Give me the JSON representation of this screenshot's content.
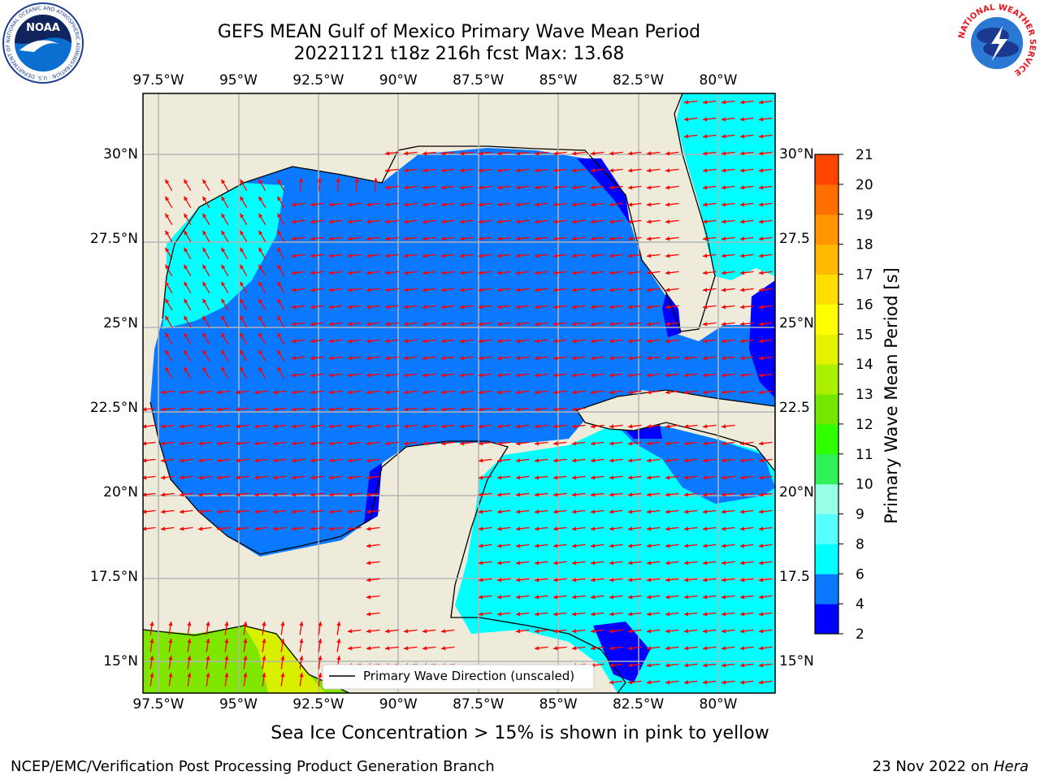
{
  "header": {
    "title_line1": "GEFS MEAN Gulf of Mexico Primary Wave Mean Period",
    "title_line2": "20221121 t18z 216h fcst   Max: 13.68"
  },
  "logos": {
    "left": "NOAA",
    "left_ring": "NATIONAL OCEANIC AND ATMOSPHERIC ADMINISTRATION · U.S. DEPARTMENT OF COMMERCE",
    "right_ring": "NATIONAL WEATHER SERVICE"
  },
  "chart_data": {
    "type": "heatmap",
    "title": "GEFS MEAN Gulf of Mexico Primary Wave Mean Period",
    "subtitle": "20221121 t18z 216h fcst   Max: 13.68",
    "max_value": 13.68,
    "xlim": [
      -98.0,
      -78.0
    ],
    "ylim": [
      14.0,
      32.0
    ],
    "x_ticks": [
      -97.5,
      -95,
      -92.5,
      -90,
      -87.5,
      -85,
      -82.5,
      -80
    ],
    "x_tick_labels": [
      "97.5°W",
      "95°W",
      "92.5°W",
      "90°W",
      "87.5°W",
      "85°W",
      "82.5°W",
      "80°W"
    ],
    "y_ticks": [
      30,
      27.5,
      25,
      22.5,
      20,
      17.5,
      15
    ],
    "y_tick_labels": [
      "30°N",
      "27.5°N",
      "25°N",
      "22.5°N",
      "20°N",
      "17.5°N",
      "15°N"
    ],
    "right_tick_labels": [
      "30°N",
      "27.5",
      "25°N",
      "22.5",
      "20°N",
      "17.5",
      "15°N"
    ],
    "grid": true,
    "legend": {
      "label": "Primary Wave Direction (unscaled)",
      "position": "bottom-right"
    },
    "colorbar": {
      "label": "Primary Wave Mean Period [s]",
      "levels": [
        2,
        4,
        6,
        8,
        9,
        10,
        11,
        12,
        13,
        14,
        15,
        16,
        17,
        18,
        19,
        20,
        21
      ],
      "tick_labels": [
        "2",
        "4",
        "6",
        "8",
        "9",
        "10",
        "11",
        "12",
        "13",
        "14",
        "15",
        "16",
        "17",
        "18",
        "19",
        "20",
        "21"
      ],
      "colors": [
        "#0000ff",
        "#0a78ff",
        "#00ffff",
        "#55ffff",
        "#96ffe6",
        "#2ff25a",
        "#30ff00",
        "#74e600",
        "#aaef00",
        "#e4f200",
        "#ffff00",
        "#ffdd00",
        "#ffba00",
        "#ff9600",
        "#ff6e00",
        "#ff4600"
      ]
    },
    "field_regions": [
      {
        "name": "Gulf of Mexico basin",
        "period_band": "4-6"
      },
      {
        "name": "NW Gulf shelf (Texas/Louisiana)",
        "period_band": "6-8"
      },
      {
        "name": "Atlantic east of Florida",
        "period_band": "6-8"
      },
      {
        "name": "Caribbean Sea",
        "period_band": "6-8"
      },
      {
        "name": "Florida Straits / Bahamas edge",
        "period_band": "2-4"
      },
      {
        "name": "Eastern Pacific (SW corner)",
        "period_band": "12-14"
      }
    ],
    "direction_field": {
      "gulf": "westward, turning northward near Texas coast",
      "atlantic_east_of_florida": "westward",
      "caribbean": "westward",
      "pacific": "northward"
    },
    "colors": {
      "land": "#efebda",
      "coast": "#000000",
      "arrow": "#ff0000",
      "grid": "#b4b4b4"
    }
  },
  "footer": {
    "caption": "Sea Ice Concentration > 15% is shown in pink to yellow",
    "left": "NCEP/EMC/Verification Post Processing Product Generation Branch",
    "right_date": "23 Nov 2022 on ",
    "right_machine": "Hera"
  }
}
